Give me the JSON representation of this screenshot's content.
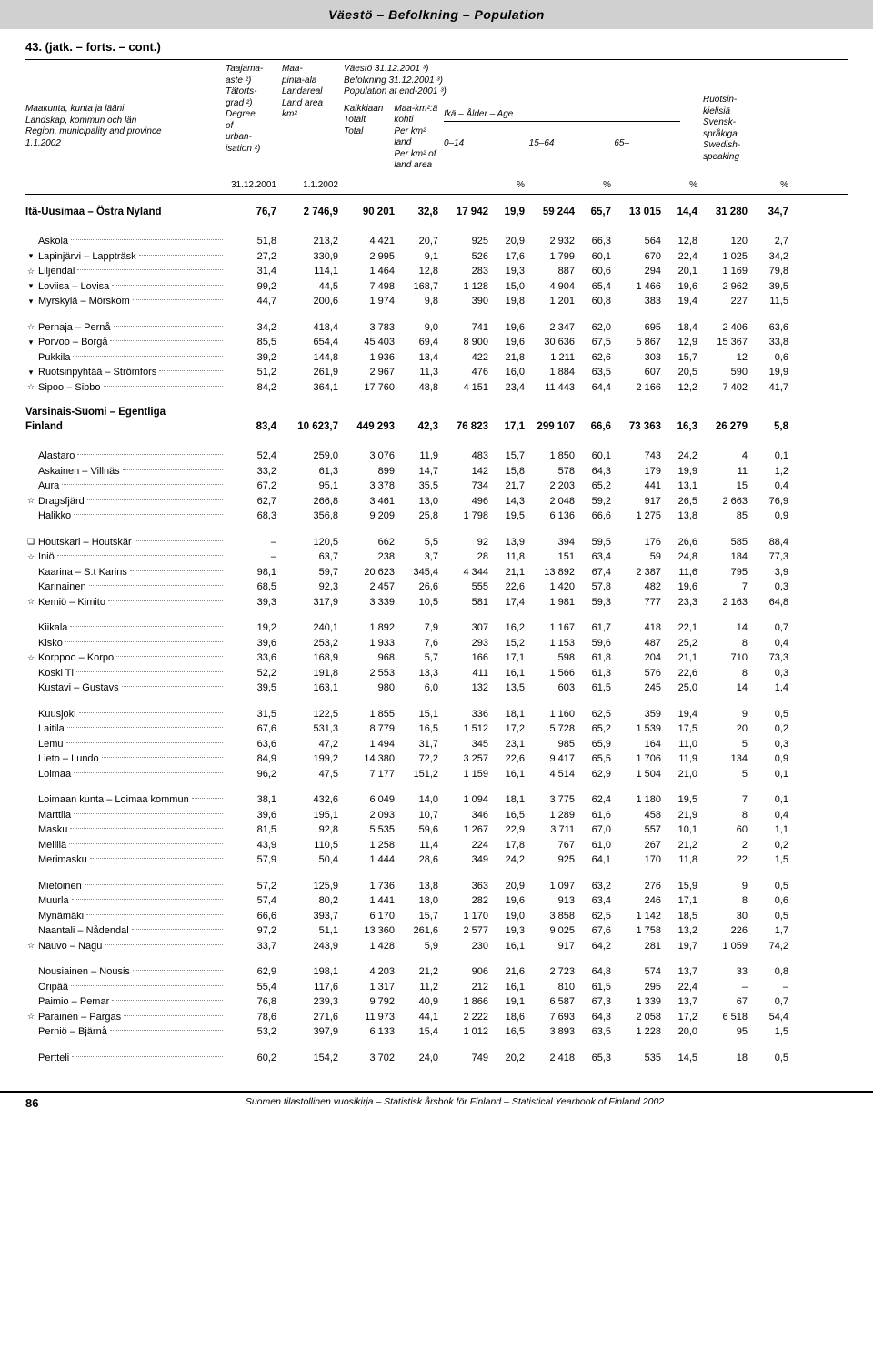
{
  "header_band": "Väestö – Befolkning – Population",
  "table_number": "43. (jatk. – forts. – cont.)",
  "col_headers": {
    "c1": [
      "Maakunta, kunta ja lääni",
      "Landskap, kommun och län",
      "Region, municipality and province",
      "1.1.2002"
    ],
    "c2": [
      "Taajama-",
      "aste ²)",
      "Tätorts-",
      "grad ²)",
      "Degree",
      "of",
      "urban-",
      "isation ²)"
    ],
    "c3": [
      "Maa-",
      "pinta-ala",
      "Landareal",
      "Land area",
      "km²"
    ],
    "c4": [
      "Väestö 31.12.2001 ³)",
      "Befolkning 31.12.2001 ³)",
      "Population at end-2001 ³)"
    ],
    "c4a": [
      "Kaikkiaan",
      "Totalt",
      "Total"
    ],
    "c4b": [
      "Maa-km²:ä",
      "kohti",
      "Per km² land",
      "Per km² of",
      "land area"
    ],
    "age": "Ikä – Ålder – Age",
    "age_cols": [
      "0–14",
      "15–64",
      "65–"
    ],
    "c_last": [
      "Ruotsin-",
      "kielisiä",
      "Svensk-",
      "språkiga",
      "Swedish-",
      "speaking"
    ]
  },
  "date_row": {
    "d1": "31.12.2001",
    "d2": "1.1.2002",
    "pct": "%"
  },
  "sections": [
    {
      "title_lines": [
        "Itä-Uusimaa – Östra Nyland . . . ."
      ],
      "totals": [
        "76,7",
        "2 746,9",
        "90 201",
        "32,8",
        "17 942",
        "19,9",
        "59 244",
        "65,7",
        "13 015",
        "14,4",
        "31 280",
        "34,7"
      ],
      "groups": [
        [
          {
            "sym": "",
            "name": "Askola",
            "v": [
              "51,8",
              "213,2",
              "4 421",
              "20,7",
              "925",
              "20,9",
              "2 932",
              "66,3",
              "564",
              "12,8",
              "120",
              "2,7"
            ]
          },
          {
            "sym": "▾",
            "name": "Lapinjärvi – Lappträsk",
            "v": [
              "27,2",
              "330,9",
              "2 995",
              "9,1",
              "526",
              "17,6",
              "1 799",
              "60,1",
              "670",
              "22,4",
              "1 025",
              "34,2"
            ]
          },
          {
            "sym": "☆",
            "name": "Liljendal",
            "v": [
              "31,4",
              "114,1",
              "1 464",
              "12,8",
              "283",
              "19,3",
              "887",
              "60,6",
              "294",
              "20,1",
              "1 169",
              "79,8"
            ]
          },
          {
            "sym": "▾",
            "name": "Loviisa – Lovisa",
            "v": [
              "99,2",
              "44,5",
              "7 498",
              "168,7",
              "1 128",
              "15,0",
              "4 904",
              "65,4",
              "1 466",
              "19,6",
              "2 962",
              "39,5"
            ]
          },
          {
            "sym": "▾",
            "name": "Myrskylä – Mörskom",
            "v": [
              "44,7",
              "200,6",
              "1 974",
              "9,8",
              "390",
              "19,8",
              "1 201",
              "60,8",
              "383",
              "19,4",
              "227",
              "11,5"
            ]
          }
        ],
        [
          {
            "sym": "☆",
            "name": "Pernaja – Pernå",
            "v": [
              "34,2",
              "418,4",
              "3 783",
              "9,0",
              "741",
              "19,6",
              "2 347",
              "62,0",
              "695",
              "18,4",
              "2 406",
              "63,6"
            ]
          },
          {
            "sym": "▾",
            "name": "Porvoo – Borgå",
            "v": [
              "85,5",
              "654,4",
              "45 403",
              "69,4",
              "8 900",
              "19,6",
              "30 636",
              "67,5",
              "5 867",
              "12,9",
              "15 367",
              "33,8"
            ]
          },
          {
            "sym": "",
            "name": "Pukkila",
            "v": [
              "39,2",
              "144,8",
              "1 936",
              "13,4",
              "422",
              "21,8",
              "1 211",
              "62,6",
              "303",
              "15,7",
              "12",
              "0,6"
            ]
          },
          {
            "sym": "▾",
            "name": "Ruotsinpyhtää – Strömfors",
            "v": [
              "51,2",
              "261,9",
              "2 967",
              "11,3",
              "476",
              "16,0",
              "1 884",
              "63,5",
              "607",
              "20,5",
              "590",
              "19,9"
            ]
          },
          {
            "sym": "☆",
            "name": "Sipoo – Sibbo",
            "v": [
              "84,2",
              "364,1",
              "17 760",
              "48,8",
              "4 151",
              "23,4",
              "11 443",
              "64,4",
              "2 166",
              "12,2",
              "7 402",
              "41,7"
            ]
          }
        ]
      ]
    },
    {
      "title_lines": [
        "Varsinais-Suomi – Egentliga",
        "  Finland . . . . . . . . . . . . . . . . . ."
      ],
      "totals": [
        "83,4",
        "10 623,7",
        "449 293",
        "42,3",
        "76 823",
        "17,1",
        "299 107",
        "66,6",
        "73 363",
        "16,3",
        "26 279",
        "5,8"
      ],
      "groups": [
        [
          {
            "sym": "",
            "name": "Alastaro",
            "v": [
              "52,4",
              "259,0",
              "3 076",
              "11,9",
              "483",
              "15,7",
              "1 850",
              "60,1",
              "743",
              "24,2",
              "4",
              "0,1"
            ]
          },
          {
            "sym": "",
            "name": "Askainen – Villnäs",
            "v": [
              "33,2",
              "61,3",
              "899",
              "14,7",
              "142",
              "15,8",
              "578",
              "64,3",
              "179",
              "19,9",
              "11",
              "1,2"
            ]
          },
          {
            "sym": "",
            "name": "Aura",
            "v": [
              "67,2",
              "95,1",
              "3 378",
              "35,5",
              "734",
              "21,7",
              "2 203",
              "65,2",
              "441",
              "13,1",
              "15",
              "0,4"
            ]
          },
          {
            "sym": "☆",
            "name": "Dragsfjärd",
            "v": [
              "62,7",
              "266,8",
              "3 461",
              "13,0",
              "496",
              "14,3",
              "2 048",
              "59,2",
              "917",
              "26,5",
              "2 663",
              "76,9"
            ]
          },
          {
            "sym": "",
            "name": "Halikko",
            "v": [
              "68,3",
              "356,8",
              "9 209",
              "25,8",
              "1 798",
              "19,5",
              "6 136",
              "66,6",
              "1 275",
              "13,8",
              "85",
              "0,9"
            ]
          }
        ],
        [
          {
            "sym": "❏",
            "name": "Houtskari – Houtskär",
            "v": [
              "–",
              "120,5",
              "662",
              "5,5",
              "92",
              "13,9",
              "394",
              "59,5",
              "176",
              "26,6",
              "585",
              "88,4"
            ]
          },
          {
            "sym": "☆",
            "name": "Iniö",
            "v": [
              "–",
              "63,7",
              "238",
              "3,7",
              "28",
              "11,8",
              "151",
              "63,4",
              "59",
              "24,8",
              "184",
              "77,3"
            ]
          },
          {
            "sym": "",
            "name": "Kaarina – S:t Karins",
            "v": [
              "98,1",
              "59,7",
              "20 623",
              "345,4",
              "4 344",
              "21,1",
              "13 892",
              "67,4",
              "2 387",
              "11,6",
              "795",
              "3,9"
            ]
          },
          {
            "sym": "",
            "name": "Karinainen",
            "v": [
              "68,5",
              "92,3",
              "2 457",
              "26,6",
              "555",
              "22,6",
              "1 420",
              "57,8",
              "482",
              "19,6",
              "7",
              "0,3"
            ]
          },
          {
            "sym": "☆",
            "name": "Kemiö – Kimito",
            "v": [
              "39,3",
              "317,9",
              "3 339",
              "10,5",
              "581",
              "17,4",
              "1 981",
              "59,3",
              "777",
              "23,3",
              "2 163",
              "64,8"
            ]
          }
        ],
        [
          {
            "sym": "",
            "name": "Kiikala",
            "v": [
              "19,2",
              "240,1",
              "1 892",
              "7,9",
              "307",
              "16,2",
              "1 167",
              "61,7",
              "418",
              "22,1",
              "14",
              "0,7"
            ]
          },
          {
            "sym": "",
            "name": "Kisko",
            "v": [
              "39,6",
              "253,2",
              "1 933",
              "7,6",
              "293",
              "15,2",
              "1 153",
              "59,6",
              "487",
              "25,2",
              "8",
              "0,4"
            ]
          },
          {
            "sym": "☆",
            "name": "Korppoo – Korpo",
            "v": [
              "33,6",
              "168,9",
              "968",
              "5,7",
              "166",
              "17,1",
              "598",
              "61,8",
              "204",
              "21,1",
              "710",
              "73,3"
            ]
          },
          {
            "sym": "",
            "name": "Koski Tl",
            "v": [
              "52,2",
              "191,8",
              "2 553",
              "13,3",
              "411",
              "16,1",
              "1 566",
              "61,3",
              "576",
              "22,6",
              "8",
              "0,3"
            ]
          },
          {
            "sym": "",
            "name": "Kustavi – Gustavs",
            "v": [
              "39,5",
              "163,1",
              "980",
              "6,0",
              "132",
              "13,5",
              "603",
              "61,5",
              "245",
              "25,0",
              "14",
              "1,4"
            ]
          }
        ],
        [
          {
            "sym": "",
            "name": "Kuusjoki",
            "v": [
              "31,5",
              "122,5",
              "1 855",
              "15,1",
              "336",
              "18,1",
              "1 160",
              "62,5",
              "359",
              "19,4",
              "9",
              "0,5"
            ]
          },
          {
            "sym": "",
            "name": "Laitila",
            "v": [
              "67,6",
              "531,3",
              "8 779",
              "16,5",
              "1 512",
              "17,2",
              "5 728",
              "65,2",
              "1 539",
              "17,5",
              "20",
              "0,2"
            ]
          },
          {
            "sym": "",
            "name": "Lemu",
            "v": [
              "63,6",
              "47,2",
              "1 494",
              "31,7",
              "345",
              "23,1",
              "985",
              "65,9",
              "164",
              "11,0",
              "5",
              "0,3"
            ]
          },
          {
            "sym": "",
            "name": "Lieto – Lundo",
            "v": [
              "84,9",
              "199,2",
              "14 380",
              "72,2",
              "3 257",
              "22,6",
              "9 417",
              "65,5",
              "1 706",
              "11,9",
              "134",
              "0,9"
            ]
          },
          {
            "sym": "",
            "name": "Loimaa",
            "v": [
              "96,2",
              "47,5",
              "7 177",
              "151,2",
              "1 159",
              "16,1",
              "4 514",
              "62,9",
              "1 504",
              "21,0",
              "5",
              "0,1"
            ]
          }
        ],
        [
          {
            "sym": "",
            "name": "Loimaan kunta – Loimaa kommun",
            "v": [
              "38,1",
              "432,6",
              "6 049",
              "14,0",
              "1 094",
              "18,1",
              "3 775",
              "62,4",
              "1 180",
              "19,5",
              "7",
              "0,1"
            ]
          },
          {
            "sym": "",
            "name": "Marttila",
            "v": [
              "39,6",
              "195,1",
              "2 093",
              "10,7",
              "346",
              "16,5",
              "1 289",
              "61,6",
              "458",
              "21,9",
              "8",
              "0,4"
            ]
          },
          {
            "sym": "",
            "name": "Masku",
            "v": [
              "81,5",
              "92,8",
              "5 535",
              "59,6",
              "1 267",
              "22,9",
              "3 711",
              "67,0",
              "557",
              "10,1",
              "60",
              "1,1"
            ]
          },
          {
            "sym": "",
            "name": "Mellilä",
            "v": [
              "43,9",
              "110,5",
              "1 258",
              "11,4",
              "224",
              "17,8",
              "767",
              "61,0",
              "267",
              "21,2",
              "2",
              "0,2"
            ]
          },
          {
            "sym": "",
            "name": "Merimasku",
            "v": [
              "57,9",
              "50,4",
              "1 444",
              "28,6",
              "349",
              "24,2",
              "925",
              "64,1",
              "170",
              "11,8",
              "22",
              "1,5"
            ]
          }
        ],
        [
          {
            "sym": "",
            "name": "Mietoinen",
            "v": [
              "57,2",
              "125,9",
              "1 736",
              "13,8",
              "363",
              "20,9",
              "1 097",
              "63,2",
              "276",
              "15,9",
              "9",
              "0,5"
            ]
          },
          {
            "sym": "",
            "name": "Muurla",
            "v": [
              "57,4",
              "80,2",
              "1 441",
              "18,0",
              "282",
              "19,6",
              "913",
              "63,4",
              "246",
              "17,1",
              "8",
              "0,6"
            ]
          },
          {
            "sym": "",
            "name": "Mynämäki",
            "v": [
              "66,6",
              "393,7",
              "6 170",
              "15,7",
              "1 170",
              "19,0",
              "3 858",
              "62,5",
              "1 142",
              "18,5",
              "30",
              "0,5"
            ]
          },
          {
            "sym": "",
            "name": "Naantali – Nådendal",
            "v": [
              "97,2",
              "51,1",
              "13 360",
              "261,6",
              "2 577",
              "19,3",
              "9 025",
              "67,6",
              "1 758",
              "13,2",
              "226",
              "1,7"
            ]
          },
          {
            "sym": "☆",
            "name": "Nauvo – Nagu",
            "v": [
              "33,7",
              "243,9",
              "1 428",
              "5,9",
              "230",
              "16,1",
              "917",
              "64,2",
              "281",
              "19,7",
              "1 059",
              "74,2"
            ]
          }
        ],
        [
          {
            "sym": "",
            "name": "Nousiainen – Nousis",
            "v": [
              "62,9",
              "198,1",
              "4 203",
              "21,2",
              "906",
              "21,6",
              "2 723",
              "64,8",
              "574",
              "13,7",
              "33",
              "0,8"
            ]
          },
          {
            "sym": "",
            "name": "Oripää",
            "v": [
              "55,4",
              "117,6",
              "1 317",
              "11,2",
              "212",
              "16,1",
              "810",
              "61,5",
              "295",
              "22,4",
              "–",
              "–"
            ]
          },
          {
            "sym": "",
            "name": "Paimio – Pemar",
            "v": [
              "76,8",
              "239,3",
              "9 792",
              "40,9",
              "1 866",
              "19,1",
              "6 587",
              "67,3",
              "1 339",
              "13,7",
              "67",
              "0,7"
            ]
          },
          {
            "sym": "☆",
            "name": "Parainen – Pargas",
            "v": [
              "78,6",
              "271,6",
              "11 973",
              "44,1",
              "2 222",
              "18,6",
              "7 693",
              "64,3",
              "2 058",
              "17,2",
              "6 518",
              "54,4"
            ]
          },
          {
            "sym": "",
            "name": "Perniö – Bjärnå",
            "v": [
              "53,2",
              "397,9",
              "6 133",
              "15,4",
              "1 012",
              "16,5",
              "3 893",
              "63,5",
              "1 228",
              "20,0",
              "95",
              "1,5"
            ]
          }
        ],
        [
          {
            "sym": "",
            "name": "Pertteli",
            "v": [
              "60,2",
              "154,2",
              "3 702",
              "24,0",
              "749",
              "20,2",
              "2 418",
              "65,3",
              "535",
              "14,5",
              "18",
              "0,5"
            ]
          }
        ]
      ]
    }
  ],
  "footer": {
    "page": "86",
    "text": "Suomen tilastollinen vuosikirja – Statistisk årsbok för Finland – Statistical Yearbook of Finland  2002"
  }
}
